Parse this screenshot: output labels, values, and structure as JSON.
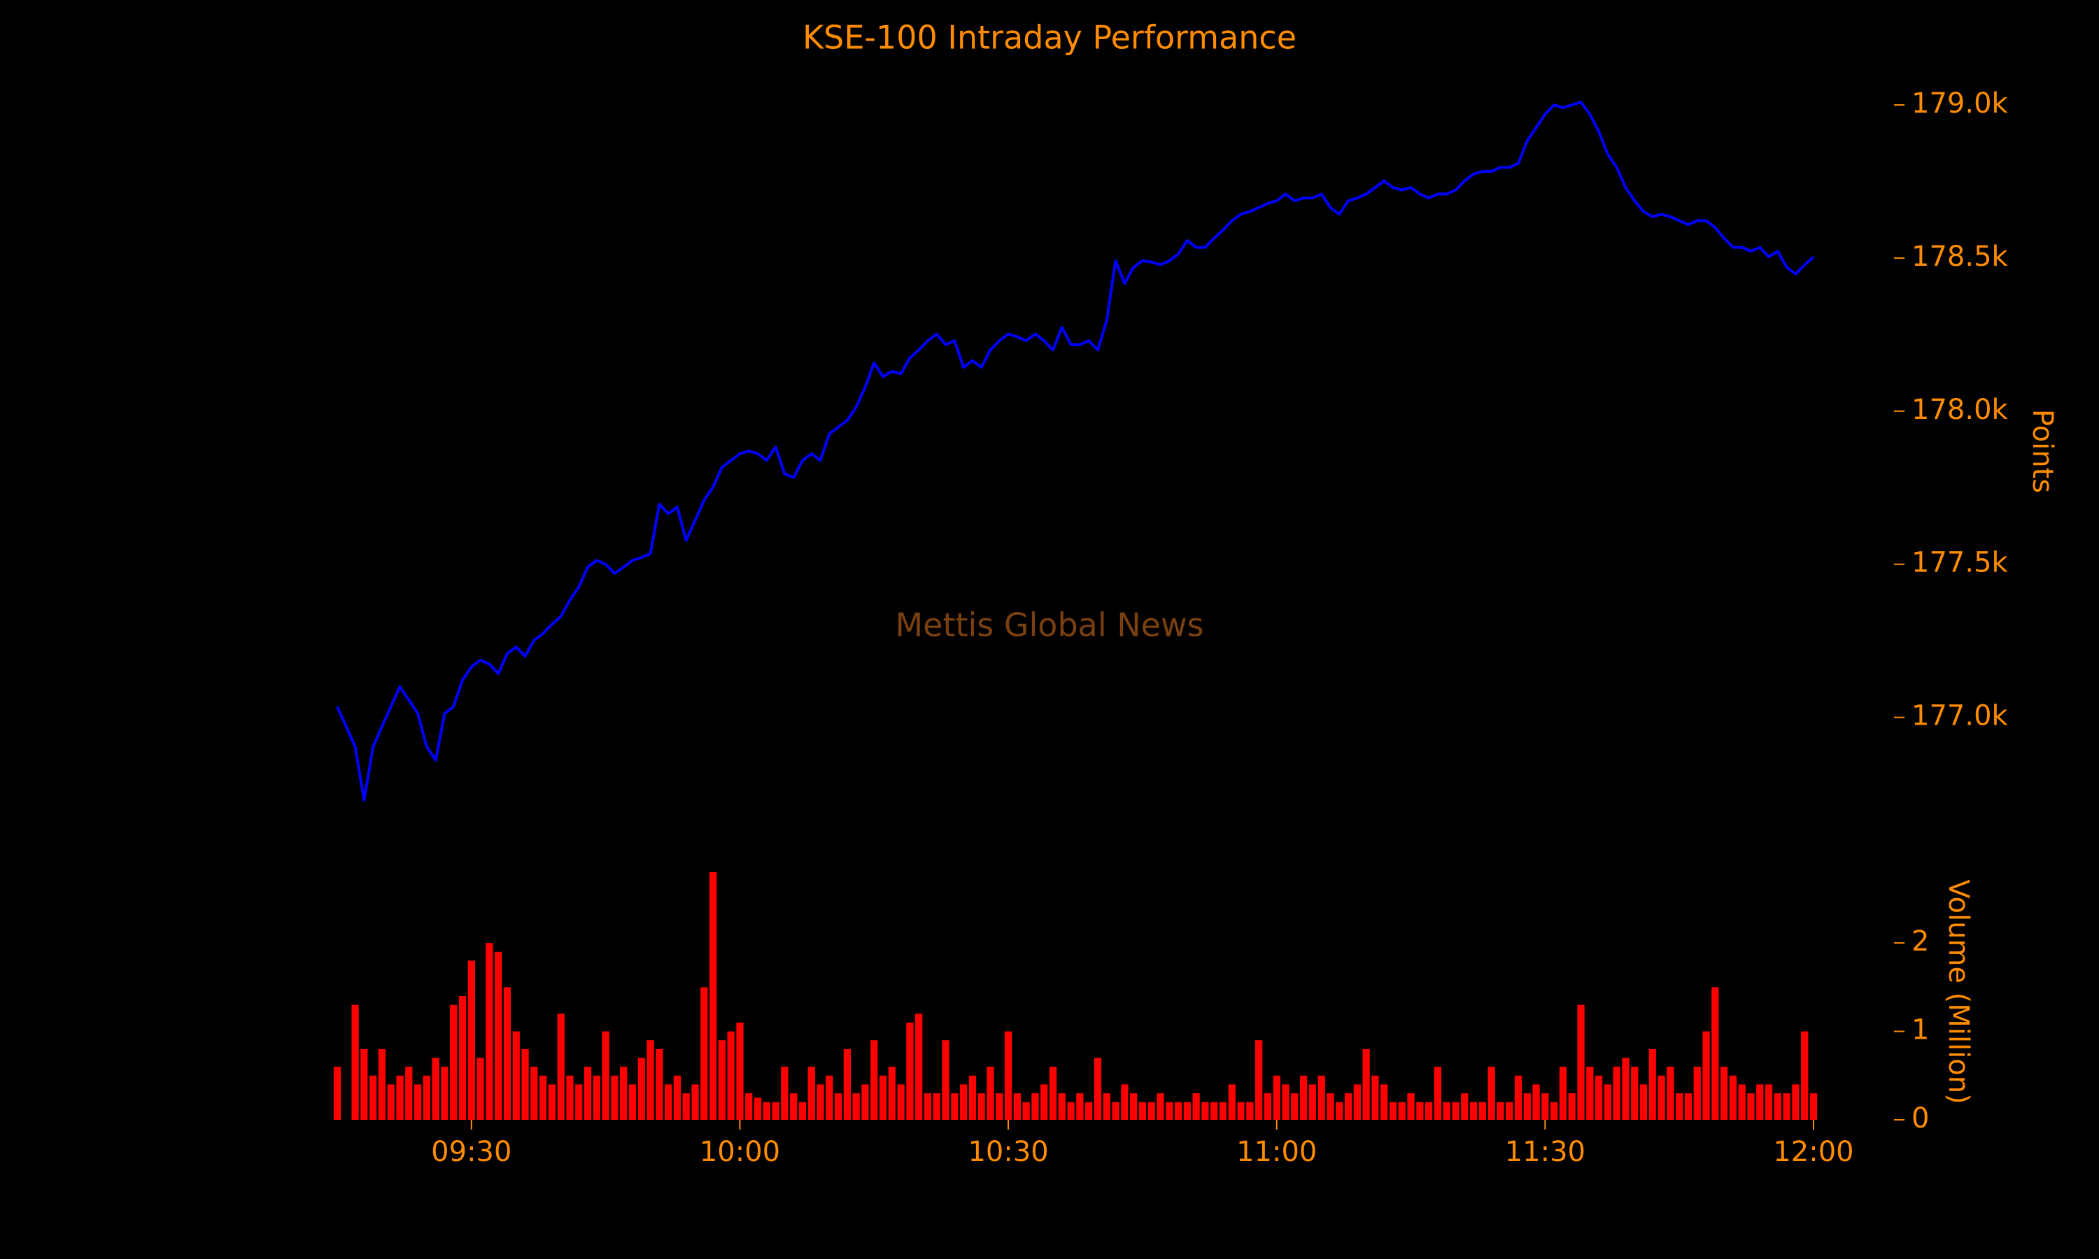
{
  "chart_data": [
    {
      "type": "line",
      "title": "KSE-100 Intraday Performance",
      "ylabel": "Points",
      "watermark": "Mettis Global News",
      "color": "#0000ff",
      "x": [
        "09:15",
        "09:16",
        "09:17",
        "09:18",
        "09:19",
        "09:20",
        "09:21",
        "09:22",
        "09:23",
        "09:24",
        "09:25",
        "09:26",
        "09:27",
        "09:28",
        "09:29",
        "09:30",
        "09:31",
        "09:32",
        "09:33",
        "09:34",
        "09:35",
        "09:36",
        "09:37",
        "09:38",
        "09:39",
        "09:40",
        "09:41",
        "09:42",
        "09:43",
        "09:44",
        "09:45",
        "09:46",
        "09:47",
        "09:48",
        "09:49",
        "09:50",
        "09:51",
        "09:52",
        "09:53",
        "09:54",
        "09:55",
        "09:56",
        "09:57",
        "09:58",
        "09:59",
        "10:00",
        "10:01",
        "10:02",
        "10:03",
        "10:04",
        "10:05",
        "10:06",
        "10:07",
        "10:08",
        "10:09",
        "10:10",
        "10:11",
        "10:12",
        "10:13",
        "10:14",
        "10:15",
        "10:16",
        "10:17",
        "10:18",
        "10:19",
        "10:20",
        "10:21",
        "10:22",
        "10:23",
        "10:24",
        "10:25",
        "10:26",
        "10:27",
        "10:28",
        "10:29",
        "10:30",
        "10:31",
        "10:32",
        "10:33",
        "10:34",
        "10:35",
        "10:36",
        "10:37",
        "10:38",
        "10:39",
        "10:40",
        "10:41",
        "10:42",
        "10:43",
        "10:44",
        "10:45",
        "10:46",
        "10:47",
        "10:48",
        "10:49",
        "10:50",
        "10:51",
        "10:52",
        "10:53",
        "10:54",
        "10:55",
        "10:56",
        "10:57",
        "10:58",
        "10:59",
        "11:00",
        "11:01",
        "11:02",
        "11:03",
        "11:04",
        "11:05",
        "11:06",
        "11:07",
        "11:08",
        "11:09",
        "11:10",
        "11:11",
        "11:12",
        "11:13",
        "11:14",
        "11:15",
        "11:16",
        "11:17",
        "11:18",
        "11:19",
        "11:20",
        "11:21",
        "11:22",
        "11:23",
        "11:24",
        "11:25",
        "11:26",
        "11:27",
        "11:28",
        "11:29",
        "11:30",
        "11:31",
        "11:32",
        "11:33",
        "11:34",
        "11:35",
        "11:36",
        "11:37",
        "11:38",
        "11:39",
        "11:40",
        "11:41",
        "11:42",
        "11:43",
        "11:44",
        "11:45",
        "11:46",
        "11:47",
        "11:48",
        "11:49",
        "11:50",
        "11:51",
        "11:52",
        "11:53",
        "11:54",
        "11:55",
        "11:56",
        "11:57",
        "11:58",
        "11:59",
        "12:00"
      ],
      "values": [
        177035,
        176970,
        176904,
        176730,
        176904,
        176970,
        177035,
        177100,
        177057,
        177013,
        176904,
        176860,
        177013,
        177035,
        177122,
        177165,
        177187,
        177174,
        177143,
        177209,
        177230,
        177200,
        177252,
        177274,
        177304,
        177330,
        177383,
        177426,
        177491,
        177513,
        177500,
        177470,
        177491,
        177513,
        177522,
        177535,
        177696,
        177665,
        177687,
        177578,
        177643,
        177709,
        177752,
        177817,
        177839,
        177861,
        177870,
        177861,
        177839,
        177883,
        177796,
        177783,
        177839,
        177861,
        177839,
        177926,
        177948,
        177970,
        178013,
        178078,
        178157,
        178113,
        178130,
        178122,
        178174,
        178200,
        178230,
        178252,
        178217,
        178230,
        178143,
        178165,
        178143,
        178200,
        178230,
        178252,
        178243,
        178230,
        178252,
        178230,
        178200,
        178274,
        178217,
        178217,
        178230,
        178200,
        178296,
        178491,
        178417,
        178470,
        178491,
        178487,
        178478,
        178491,
        178513,
        178557,
        178535,
        178535,
        178565,
        178591,
        178622,
        178643,
        178652,
        178665,
        178678,
        178687,
        178709,
        178687,
        178696,
        178696,
        178709,
        178665,
        178643,
        178687,
        178696,
        178709,
        178730,
        178752,
        178730,
        178722,
        178730,
        178709,
        178696,
        178709,
        178709,
        178722,
        178752,
        178774,
        178783,
        178783,
        178796,
        178796,
        178809,
        178883,
        178926,
        178970,
        179000,
        178991,
        179000,
        179009,
        178970,
        178913,
        178839,
        178796,
        178730,
        178687,
        178652,
        178635,
        178643,
        178635,
        178622,
        178609,
        178622,
        178622,
        178600,
        178565,
        178535,
        178535,
        178522,
        178535,
        178504,
        178522,
        178470,
        178448,
        178478,
        178504
      ],
      "xlim": [
        "09:15",
        "12:00"
      ],
      "ylim": [
        176700,
        179080
      ],
      "yticks": [
        {
          "value": 177000,
          "label": "177.0k"
        },
        {
          "value": 177500,
          "label": "177.5k"
        },
        {
          "value": 178000,
          "label": "178.0k"
        },
        {
          "value": 178500,
          "label": "178.5k"
        },
        {
          "value": 179000,
          "label": "179.0k"
        }
      ]
    },
    {
      "type": "bar",
      "ylabel": "Volume (Million)",
      "color": "#ff0000",
      "x": [
        "09:15",
        "09:16",
        "09:17",
        "09:18",
        "09:19",
        "09:20",
        "09:21",
        "09:22",
        "09:23",
        "09:24",
        "09:25",
        "09:26",
        "09:27",
        "09:28",
        "09:29",
        "09:30",
        "09:31",
        "09:32",
        "09:33",
        "09:34",
        "09:35",
        "09:36",
        "09:37",
        "09:38",
        "09:39",
        "09:40",
        "09:41",
        "09:42",
        "09:43",
        "09:44",
        "09:45",
        "09:46",
        "09:47",
        "09:48",
        "09:49",
        "09:50",
        "09:51",
        "09:52",
        "09:53",
        "09:54",
        "09:55",
        "09:56",
        "09:57",
        "09:58",
        "09:59",
        "10:00",
        "10:01",
        "10:02",
        "10:03",
        "10:04",
        "10:05",
        "10:06",
        "10:07",
        "10:08",
        "10:09",
        "10:10",
        "10:11",
        "10:12",
        "10:13",
        "10:14",
        "10:15",
        "10:16",
        "10:17",
        "10:18",
        "10:19",
        "10:20",
        "10:21",
        "10:22",
        "10:23",
        "10:24",
        "10:25",
        "10:26",
        "10:27",
        "10:28",
        "10:29",
        "10:30",
        "10:31",
        "10:32",
        "10:33",
        "10:34",
        "10:35",
        "10:36",
        "10:37",
        "10:38",
        "10:39",
        "10:40",
        "10:41",
        "10:42",
        "10:43",
        "10:44",
        "10:45",
        "10:46",
        "10:47",
        "10:48",
        "10:49",
        "10:50",
        "10:51",
        "10:52",
        "10:53",
        "10:54",
        "10:55",
        "10:56",
        "10:57",
        "10:58",
        "10:59",
        "11:00",
        "11:01",
        "11:02",
        "11:03",
        "11:04",
        "11:05",
        "11:06",
        "11:07",
        "11:08",
        "11:09",
        "11:10",
        "11:11",
        "11:12",
        "11:13",
        "11:14",
        "11:15",
        "11:16",
        "11:17",
        "11:18",
        "11:19",
        "11:20",
        "11:21",
        "11:22",
        "11:23",
        "11:24",
        "11:25",
        "11:26",
        "11:27",
        "11:28",
        "11:29",
        "11:30",
        "11:31",
        "11:32",
        "11:33",
        "11:34",
        "11:35",
        "11:36",
        "11:37",
        "11:38",
        "11:39",
        "11:40",
        "11:41",
        "11:42",
        "11:43",
        "11:44",
        "11:45",
        "11:46",
        "11:47",
        "11:48",
        "11:49",
        "11:50",
        "11:51",
        "11:52",
        "11:53",
        "11:54",
        "11:55",
        "11:56",
        "11:57",
        "11:58",
        "11:59",
        "12:00"
      ],
      "values": [
        0.6,
        0,
        1.3,
        0.8,
        0.5,
        0.8,
        0.4,
        0.5,
        0.6,
        0.4,
        0.5,
        0.7,
        0.6,
        1.3,
        1.4,
        1.8,
        0.7,
        2.0,
        1.9,
        1.5,
        1.0,
        0.8,
        0.6,
        0.5,
        0.4,
        1.2,
        0.5,
        0.4,
        0.6,
        0.5,
        1.0,
        0.5,
        0.6,
        0.4,
        0.7,
        0.9,
        0.8,
        0.4,
        0.5,
        0.3,
        0.4,
        1.5,
        2.8,
        0.9,
        1.0,
        1.1,
        0.3,
        0.25,
        0.2,
        0.2,
        0.6,
        0.3,
        0.2,
        0.6,
        0.4,
        0.5,
        0.3,
        0.8,
        0.3,
        0.4,
        0.9,
        0.5,
        0.6,
        0.4,
        1.1,
        1.2,
        0.3,
        0.3,
        0.9,
        0.3,
        0.4,
        0.5,
        0.3,
        0.6,
        0.3,
        1.0,
        0.3,
        0.2,
        0.3,
        0.4,
        0.6,
        0.3,
        0.2,
        0.3,
        0.2,
        0.7,
        0.3,
        0.2,
        0.4,
        0.3,
        0.2,
        0.2,
        0.3,
        0.2,
        0.2,
        0.2,
        0.3,
        0.2,
        0.2,
        0.2,
        0.4,
        0.2,
        0.2,
        0.9,
        0.3,
        0.5,
        0.4,
        0.3,
        0.5,
        0.4,
        0.5,
        0.3,
        0.2,
        0.3,
        0.4,
        0.8,
        0.5,
        0.4,
        0.2,
        0.2,
        0.3,
        0.2,
        0.2,
        0.6,
        0.2,
        0.2,
        0.3,
        0.2,
        0.2,
        0.6,
        0.2,
        0.2,
        0.5,
        0.3,
        0.4,
        0.3,
        0.2,
        0.6,
        0.3,
        1.3,
        0.6,
        0.5,
        0.4,
        0.6,
        0.7,
        0.6,
        0.4,
        0.8,
        0.5,
        0.6,
        0.3,
        0.3,
        0.6,
        1.0,
        1.5,
        0.6,
        0.5,
        0.4,
        0.3,
        0.4,
        0.4,
        0.3,
        0.3,
        0.4,
        1.0,
        0.3
      ],
      "xlim": [
        "09:15",
        "12:00"
      ],
      "xticks": [
        "09:30",
        "10:00",
        "10:30",
        "11:00",
        "11:30",
        "12:00"
      ],
      "ylim": [
        0,
        2.8
      ],
      "yticks": [
        0,
        1,
        2
      ]
    }
  ]
}
